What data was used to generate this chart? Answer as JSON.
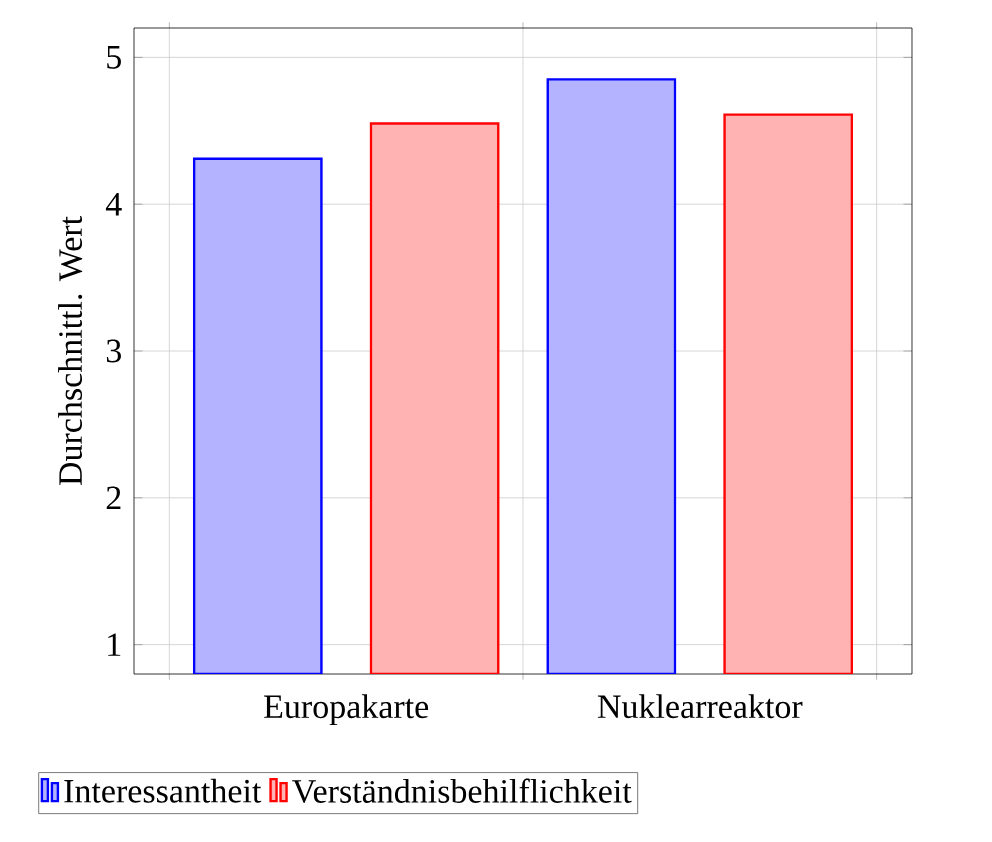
{
  "chart_data": {
    "type": "bar",
    "ylabel": "Durchschnittl. Wert",
    "categories": [
      "Europakarte",
      "Nuklearreaktor"
    ],
    "series": [
      {
        "name": "Interessantheit",
        "color": "#b3b3ff",
        "values": [
          4.31,
          4.85
        ]
      },
      {
        "name": "Verständnisbehilflichkeit",
        "color": "#ffb3b3",
        "values": [
          4.55,
          4.61
        ]
      }
    ],
    "ylim": [
      0.8,
      5.2
    ],
    "yticks": [
      1,
      2,
      3,
      4,
      5
    ],
    "grid": true,
    "legend": "bottom"
  }
}
